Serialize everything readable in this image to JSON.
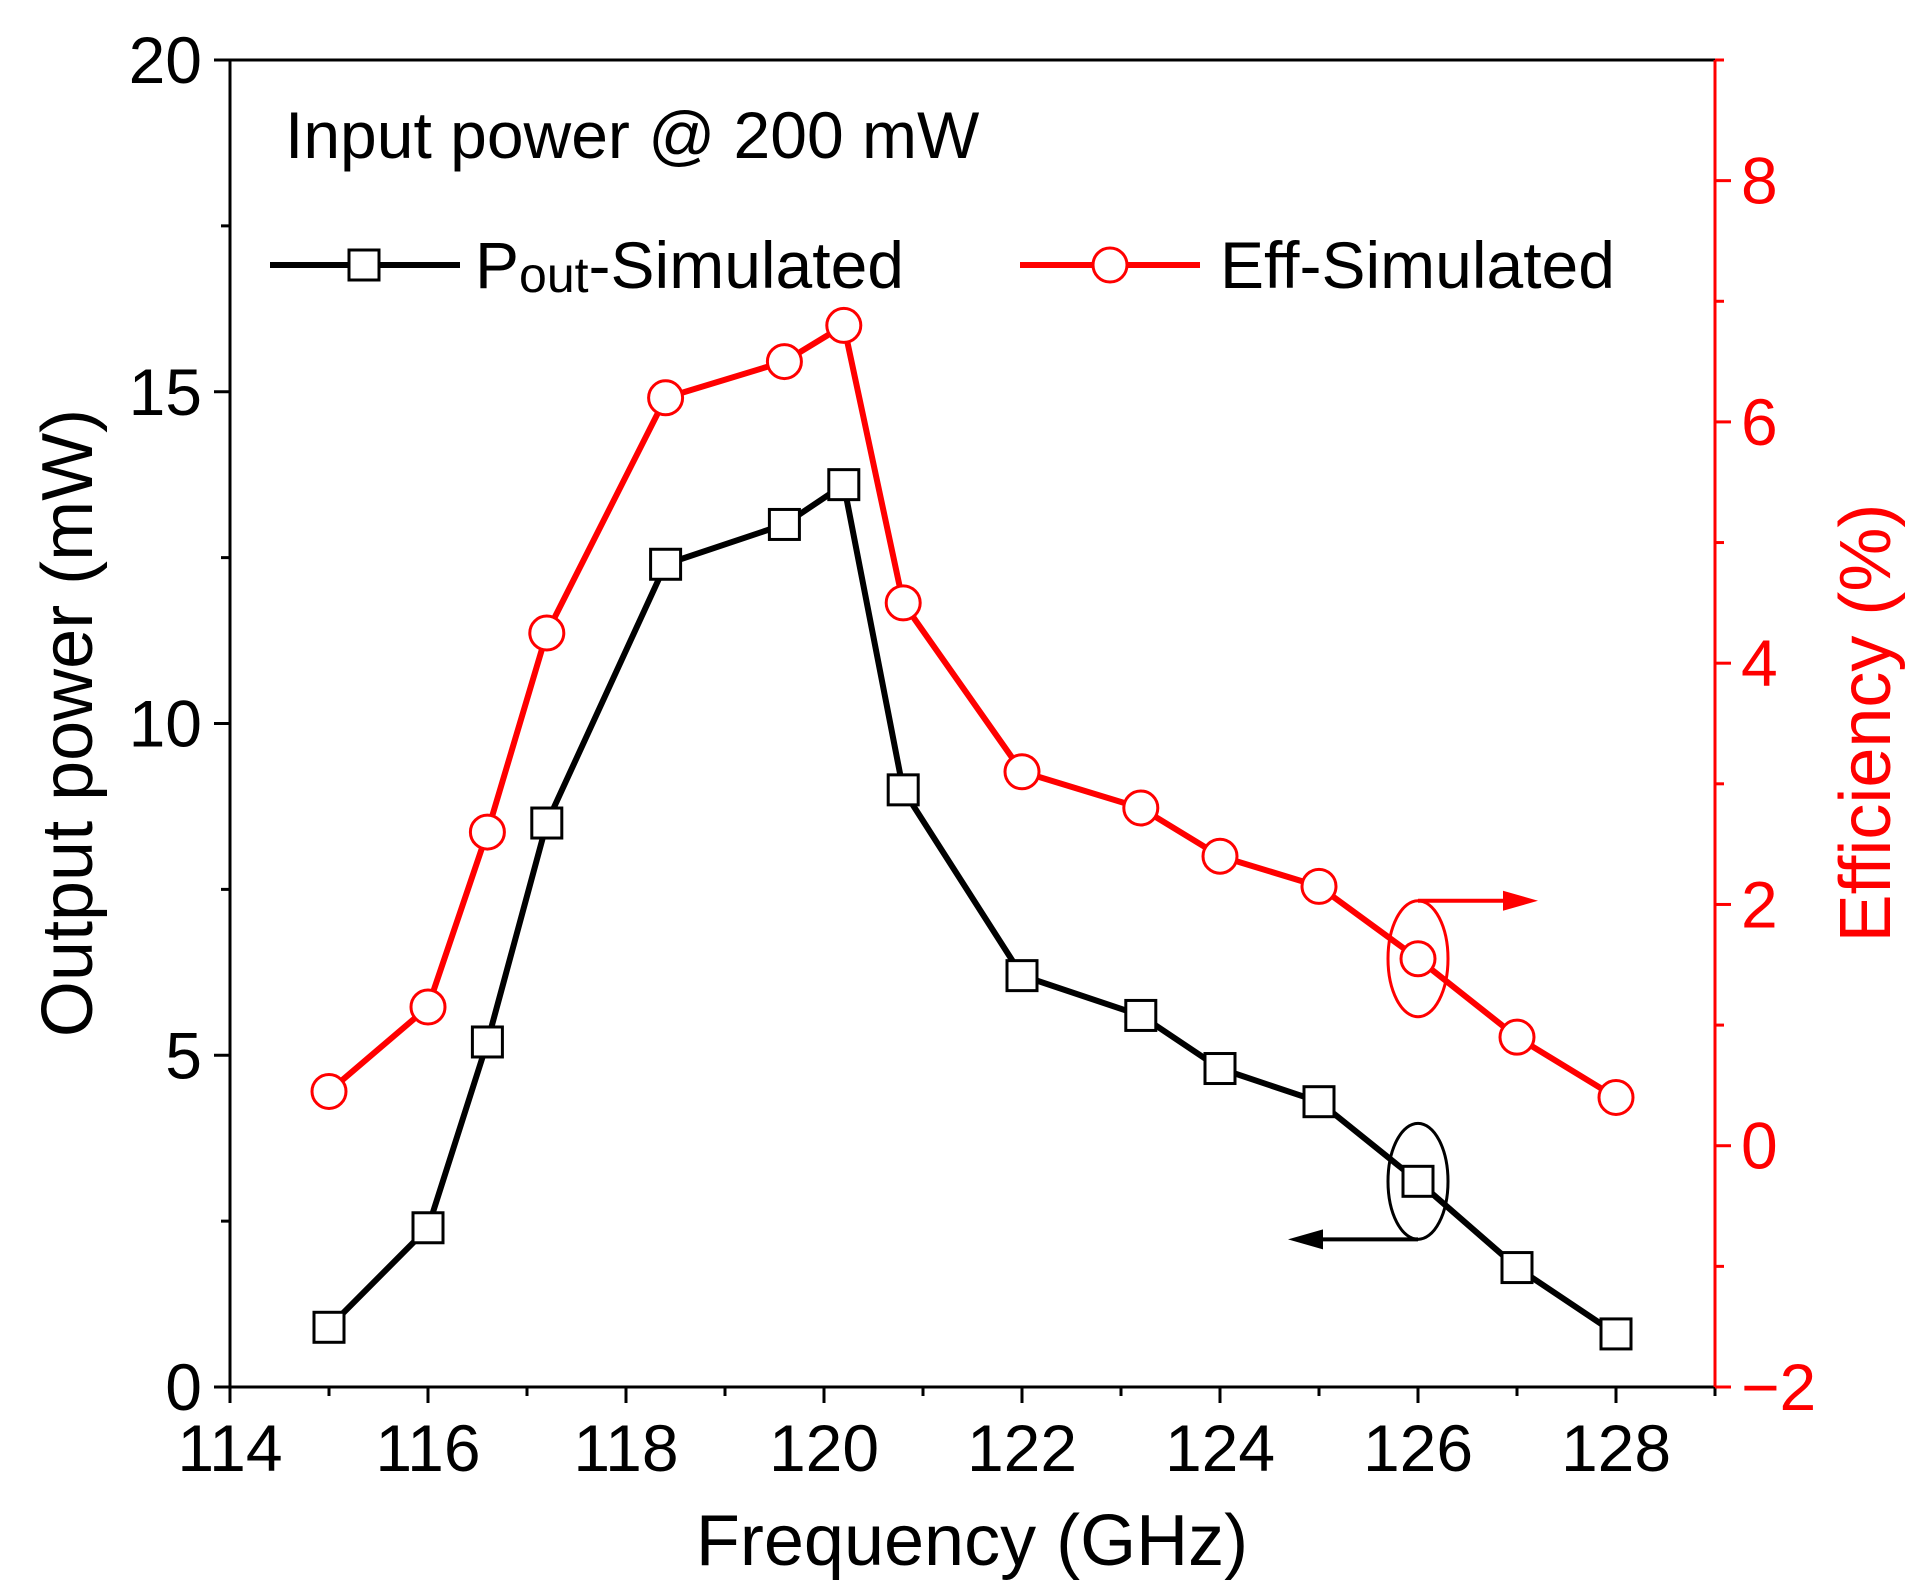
{
  "chart_data": {
    "type": "line",
    "annotation": "Input power @ 200 mW",
    "xlabel": "Frequency (GHz)",
    "ylabel_left": "Output power (mW)",
    "ylabel_right": "Efficiency (%)",
    "xlim": [
      114,
      129
    ],
    "ylim_left": [
      0,
      20
    ],
    "ylim_right": [
      -2,
      9
    ],
    "x_ticks": [
      114,
      116,
      118,
      120,
      122,
      124,
      126,
      128
    ],
    "y_left_ticks": [
      0,
      5,
      10,
      15,
      20
    ],
    "y_right_ticks": [
      -2,
      0,
      2,
      4,
      6,
      8
    ],
    "grid": false,
    "legend_position": "top",
    "colors": {
      "left_axis": "#000000",
      "right_axis": "#ff0000"
    },
    "series": [
      {
        "legend_main": "P",
        "legend_sub": "out",
        "legend_rest": "-Simulated",
        "axis": "left",
        "marker": "square",
        "color": "#000000",
        "x": [
          115,
          116,
          116.6,
          117.2,
          118.4,
          119.6,
          120.2,
          120.8,
          122,
          123.2,
          124,
          125,
          126,
          127,
          128
        ],
        "y": [
          0.9,
          2.4,
          5.2,
          8.5,
          12.4,
          13.0,
          13.6,
          9.0,
          6.2,
          5.6,
          4.8,
          4.3,
          3.1,
          1.8,
          0.8
        ]
      },
      {
        "legend_main": "Eff-Simulated",
        "legend_sub": "",
        "legend_rest": "",
        "axis": "right",
        "marker": "circle",
        "color": "#ff0000",
        "x": [
          115,
          116,
          116.6,
          117.2,
          118.4,
          119.6,
          120.2,
          120.8,
          122,
          123.2,
          124,
          125,
          126,
          127,
          128
        ],
        "y": [
          0.45,
          1.15,
          2.6,
          4.25,
          6.2,
          6.5,
          6.8,
          4.5,
          3.1,
          2.8,
          2.4,
          2.15,
          1.55,
          0.9,
          0.4
        ]
      }
    ],
    "axis_indicators": [
      {
        "series_index": 0,
        "x": 126,
        "direction": "left"
      },
      {
        "series_index": 1,
        "x": 126,
        "direction": "right"
      }
    ]
  }
}
